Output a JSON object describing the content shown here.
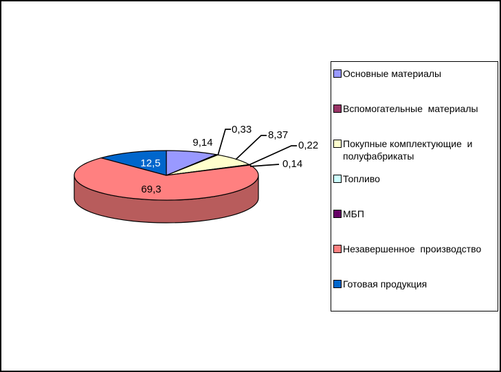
{
  "chart_data": {
    "type": "pie",
    "style": "3d",
    "title": "",
    "legend_position": "right",
    "start_angle_deg": 0,
    "direction": "clockwise",
    "total": 100,
    "series": [
      {
        "name": "Основные материалы",
        "value": 9.14,
        "label": "9,14",
        "color": "#9999FF"
      },
      {
        "name": "Вспомогательные  материалы",
        "value": 0.33,
        "label": "0,33",
        "color": "#993366"
      },
      {
        "name": "Покупные комплектующие  и\nполуфабрикаты",
        "value": 8.37,
        "label": "8,37",
        "color": "#FFFFCC"
      },
      {
        "name": "Топливо",
        "value": 0.22,
        "label": "0,22",
        "color": "#CCFFFF"
      },
      {
        "name": "МБП",
        "value": 0.14,
        "label": "0,14",
        "color": "#660066"
      },
      {
        "name": "Незавершенное  производство",
        "value": 69.3,
        "label": "69,3",
        "color": "#FF8080"
      },
      {
        "name": "Готовая продукция",
        "value": 12.5,
        "label": "12,5",
        "color": "#0066CC"
      }
    ],
    "colors": {
      "slice_outline": "#000000",
      "leader_line": "#000000",
      "label_text": "#000000",
      "label_text_on_blue": "#FFFFFF",
      "legend_border": "#000000",
      "page_border": "#000000",
      "background": "#FFFFFF"
    }
  }
}
